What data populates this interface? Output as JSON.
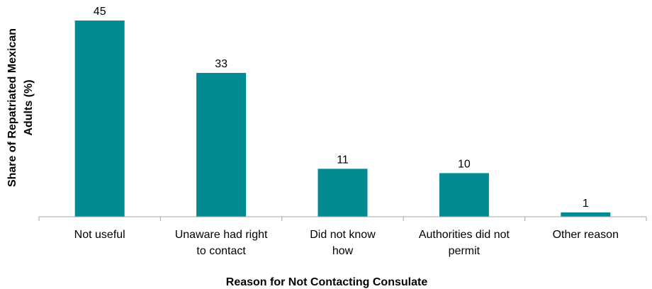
{
  "chart_data": {
    "type": "bar",
    "categories": [
      [
        "Not useful"
      ],
      [
        "Unaware had right",
        "to contact"
      ],
      [
        "Did not know",
        "how"
      ],
      [
        "Authorities did not",
        "permit"
      ],
      [
        "Other reason"
      ]
    ],
    "values": [
      45,
      33,
      11,
      10,
      1
    ],
    "data_labels": [
      "45",
      "33",
      "11",
      "10",
      "1"
    ],
    "xlabel": "Reason for Not Contacting Consulate",
    "ylabel": [
      "Share of Repatriated Mexican",
      "Adults (%)"
    ],
    "ylim": [
      0,
      45
    ],
    "grid": false,
    "legend": "none",
    "colors": {
      "bar": "#038b93",
      "axis": "#a6a6a6"
    }
  }
}
